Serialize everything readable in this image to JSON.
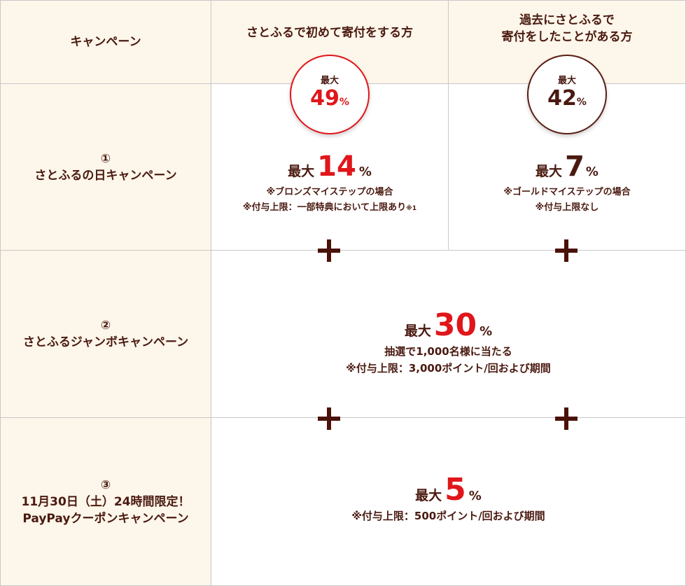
{
  "header": {
    "campaign_label": "キャンペーン",
    "first_time_label": "さとふるで初めて寄付をする方",
    "returning_label_line1": "過去にさとふるで",
    "returning_label_line2": "寄付をしたことがある方"
  },
  "badges": {
    "first_time": {
      "prefix": "最大",
      "value": "49",
      "unit": "%"
    },
    "returning": {
      "prefix": "最大",
      "value": "42",
      "unit": "%"
    }
  },
  "rows": {
    "row1": {
      "number": "①",
      "label": "さとふるの日キャンペーン",
      "first_time": {
        "prefix": "最大",
        "value": "14",
        "unit": "%",
        "note1": "※ブロンズマイステップの場合",
        "note2": "※付与上限：一部特典において上限あり",
        "note2_sup": "※1"
      },
      "returning": {
        "prefix": "最大",
        "value": "7",
        "unit": "%",
        "note1": "※ゴールドマイステップの場合",
        "note2": "※付与上限なし"
      }
    },
    "row2": {
      "number": "②",
      "label": "さとふるジャンボキャンペーン",
      "prefix": "最大",
      "value": "30",
      "unit": "%",
      "note1": "抽選で1,000名様に当たる",
      "note2": "※付与上限：3,000ポイント/回および期間"
    },
    "row3": {
      "number": "③",
      "label_line1": "11月30日（土）24時間限定！",
      "label_line2": "PayPayクーポンキャンペーン",
      "prefix": "最大",
      "value": "5",
      "unit": "%",
      "note1": "※付与上限：500ポイント/回および期間"
    }
  },
  "colors": {
    "accent_red": "#e0161b",
    "brown": "#4a1a10",
    "beige": "#fdf6ea",
    "border": "#c8c8c8"
  },
  "icons": [
    "plus-icon"
  ]
}
